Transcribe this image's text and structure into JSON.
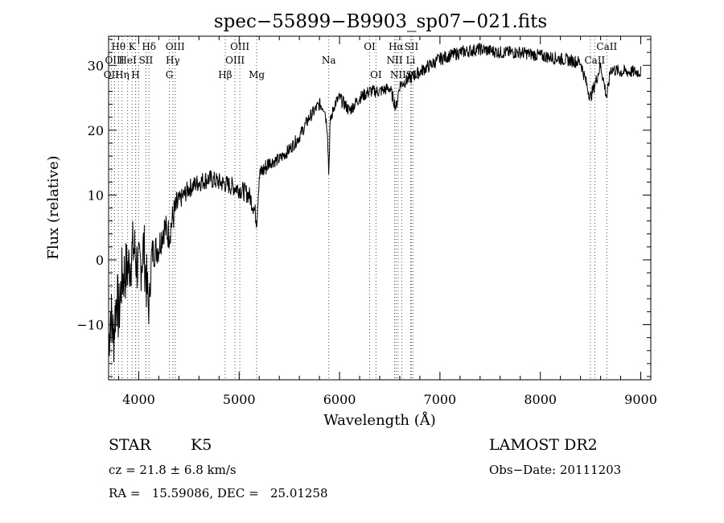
{
  "chart_data": {
    "type": "line",
    "title": "spec−55899−B9903_sp07−021.fits",
    "xlabel": "Wavelength (Å)",
    "ylabel": "Flux (relative)",
    "xlim": [
      3700,
      9100
    ],
    "ylim": [
      -18.5,
      34.5
    ],
    "xticks": [
      4000,
      5000,
      6000,
      7000,
      8000,
      9000
    ],
    "yticks": [
      -10,
      0,
      10,
      20,
      30
    ],
    "ytick_labels": [
      "−10",
      "0",
      "10",
      "20",
      "30"
    ],
    "line_color": "#000000",
    "marker_color": "#ff0000",
    "spectrum_anchors": [
      [
        3700,
        -13
      ],
      [
        3720,
        -8
      ],
      [
        3750,
        -12
      ],
      [
        3780,
        -5
      ],
      [
        3800,
        -9
      ],
      [
        3830,
        -3
      ],
      [
        3860,
        -2
      ],
      [
        3900,
        -1
      ],
      [
        3950,
        2
      ],
      [
        4000,
        -2
      ],
      [
        4050,
        2
      ],
      [
        4080,
        -4
      ],
      [
        4100,
        -8
      ],
      [
        4130,
        1
      ],
      [
        4200,
        2
      ],
      [
        4250,
        5
      ],
      [
        4300,
        4
      ],
      [
        4350,
        7
      ],
      [
        4400,
        9
      ],
      [
        4500,
        11
      ],
      [
        4600,
        12
      ],
      [
        4700,
        12.5
      ],
      [
        4800,
        12
      ],
      [
        4900,
        11.5
      ],
      [
        5000,
        11
      ],
      [
        5100,
        10
      ],
      [
        5150,
        8
      ],
      [
        5175,
        6
      ],
      [
        5200,
        13
      ],
      [
        5300,
        15
      ],
      [
        5400,
        15.5
      ],
      [
        5500,
        17
      ],
      [
        5600,
        19
      ],
      [
        5700,
        22
      ],
      [
        5800,
        24
      ],
      [
        5850,
        23.5
      ],
      [
        5880,
        20
      ],
      [
        5893,
        13
      ],
      [
        5905,
        21
      ],
      [
        5950,
        24
      ],
      [
        6000,
        25
      ],
      [
        6050,
        24
      ],
      [
        6100,
        23
      ],
      [
        6200,
        25
      ],
      [
        6300,
        26
      ],
      [
        6400,
        26
      ],
      [
        6500,
        26.5
      ],
      [
        6563,
        23.5
      ],
      [
        6600,
        27
      ],
      [
        6700,
        28
      ],
      [
        6800,
        29
      ],
      [
        6900,
        30
      ],
      [
        7000,
        31
      ],
      [
        7200,
        32
      ],
      [
        7400,
        32.5
      ],
      [
        7600,
        32
      ],
      [
        7800,
        32
      ],
      [
        8000,
        31.5
      ],
      [
        8200,
        31
      ],
      [
        8400,
        30.5
      ],
      [
        8498,
        25
      ],
      [
        8542,
        27
      ],
      [
        8600,
        30
      ],
      [
        8662,
        25
      ],
      [
        8700,
        29.5
      ],
      [
        8800,
        29
      ],
      [
        9000,
        29
      ]
    ],
    "lines": [
      {
        "label": "Hθ",
        "wavelength": 3798,
        "row": 0
      },
      {
        "label": "K",
        "wavelength": 3934,
        "row": 0
      },
      {
        "label": "Hδ",
        "wavelength": 4102,
        "row": 0
      },
      {
        "label": "OIII",
        "wavelength": 4363,
        "row": 0
      },
      {
        "label": "OIII",
        "wavelength": 5007,
        "row": 0
      },
      {
        "label": "OI",
        "wavelength": 6300,
        "row": 0
      },
      {
        "label": "Hα",
        "wavelength": 6563,
        "row": 0
      },
      {
        "label": "SII",
        "wavelength": 6716,
        "row": 0
      },
      {
        "label": "CaII",
        "wavelength": 8662,
        "row": 0
      },
      {
        "label": "OIII",
        "wavelength": 3760,
        "row": 1
      },
      {
        "label": "HeI",
        "wavelength": 3889,
        "row": 1
      },
      {
        "label": "SII",
        "wavelength": 4072,
        "row": 1
      },
      {
        "label": "Hγ",
        "wavelength": 4340,
        "row": 1
      },
      {
        "label": "OIII",
        "wavelength": 4959,
        "row": 1
      },
      {
        "label": "Na",
        "wavelength": 5893,
        "row": 1
      },
      {
        "label": "NII",
        "wavelength": 6548,
        "row": 1
      },
      {
        "label": "Li",
        "wavelength": 6708,
        "row": 1
      },
      {
        "label": "CaII",
        "wavelength": 8542,
        "row": 1
      },
      {
        "label": "OII",
        "wavelength": 3727,
        "row": 2
      },
      {
        "label": "Hη",
        "wavelength": 3835,
        "row": 2
      },
      {
        "label": "H",
        "wavelength": 3968,
        "row": 2
      },
      {
        "label": "G",
        "wavelength": 4305,
        "row": 2
      },
      {
        "label": "Hβ",
        "wavelength": 4861,
        "row": 2
      },
      {
        "label": "Mg",
        "wavelength": 5175,
        "row": 2
      },
      {
        "label": "OI",
        "wavelength": 6363,
        "row": 2
      },
      {
        "label": "NII",
        "wavelength": 6583,
        "row": 2
      },
      {
        "label": "SII",
        "wavelength": 6731,
        "row": 2
      }
    ],
    "extra_marker_lines": [
      3970,
      4000,
      6620,
      8498
    ]
  },
  "info": {
    "class": "STAR",
    "subclass": "K5",
    "cz": "cz = 21.8 ± 6.8 km/s",
    "coords": "RA =   15.59086, DEC =   25.01258",
    "survey": "LAMOST DR2",
    "obs_date": "Obs−Date: 20111203"
  }
}
